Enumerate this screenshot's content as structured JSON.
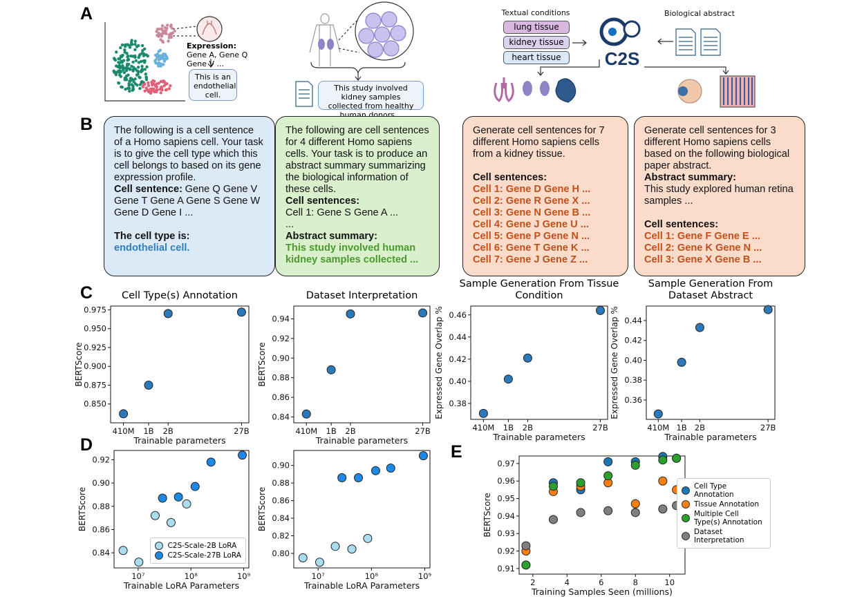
{
  "panel_labels": [
    "A",
    "B",
    "C",
    "D",
    "E"
  ],
  "panel_a": {
    "expression_label": "Expression:",
    "expression_text": "Gene A, Gene Q Gene V ...",
    "cell_answer": "This is an endothelial cell.",
    "study_text": "This study involved kidney samples collected from healthy human donors...",
    "conditions_title": "Textual conditions",
    "conditions": [
      "lung tissue",
      "kidney tissue",
      "heart tissue"
    ],
    "abstract_title": "Biological abstract",
    "logo": "C2S"
  },
  "panel_b": {
    "boxes": [
      {
        "paragraphs": [
          [
            {
              "text": "The following is a cell sentence of a Homo sapiens cell. Your task is to give the cell type which this cell belongs to based on its gene expression profile."
            }
          ],
          [
            {
              "text": "Cell sentence:",
              "bold": true
            },
            {
              "text": "Gene Q Gene V Gene T Gene A Gene S Gene W Gene D Gene I ..."
            }
          ],
          [
            {
              "text": "The cell type is:",
              "bold": true
            }
          ],
          [
            {
              "text": "endothelial cell.",
              "bold": true,
              "color": "#2f7fc1"
            }
          ]
        ]
      },
      {
        "paragraphs": [
          [
            {
              "text": "The following are cell sentences for 4 different Homo sapiens cells. Your task is to produce an abstract summary summarizing the biological information of these cells."
            }
          ],
          [
            {
              "text": "Cell sentences:",
              "bold": true
            }
          ],
          [
            {
              "text": "Cell 1: Gene S Gene A ..."
            }
          ],
          [
            {
              "text": "..."
            }
          ],
          [
            {
              "text": "Abstract summary:",
              "bold": true
            }
          ],
          [
            {
              "text": "This study involved human kidney samples collected ...",
              "bold": true,
              "color": "#4a9a2e"
            }
          ]
        ]
      },
      {
        "paragraphs": [
          [
            {
              "text": "Generate cell sentences for 7 different Homo sapiens cells from a kidney tissue."
            }
          ],
          [
            {
              "text": "Cell sentences:",
              "bold": true
            }
          ],
          [
            {
              "text": "Cell 1: Gene D Gene H ...",
              "bold": true,
              "color": "#c0501c"
            }
          ],
          [
            {
              "text": "Cell 2: Gene R Gene X ...",
              "bold": true,
              "color": "#c0501c"
            }
          ],
          [
            {
              "text": "Cell 3: Gene N Gene B ...",
              "bold": true,
              "color": "#c0501c"
            }
          ],
          [
            {
              "text": "Cell 4: Gene J Gene U ...",
              "bold": true,
              "color": "#c0501c"
            }
          ],
          [
            {
              "text": "Cell 5: Gene P Gene N ...",
              "bold": true,
              "color": "#c0501c"
            }
          ],
          [
            {
              "text": "Cell 6: Gene T Gene K ...",
              "bold": true,
              "color": "#c0501c"
            }
          ],
          [
            {
              "text": "Cell 7: Gene J Gene Z ...",
              "bold": true,
              "color": "#c0501c"
            }
          ]
        ]
      },
      {
        "paragraphs": [
          [
            {
              "text": "Generate cell sentences for 3 different Homo sapiens cells based on the following biological paper abstract."
            }
          ],
          [
            {
              "text": "Abstract summary:",
              "bold": true
            }
          ],
          [
            {
              "text": "This study explored human retina samples ..."
            }
          ],
          [
            {
              "text": "Cell sentences:",
              "bold": true
            }
          ],
          [
            {
              "text": "Cell 1: Gene F Gene E ...",
              "bold": true,
              "color": "#c0501c"
            }
          ],
          [
            {
              "text": "Cell 2: Gene K Gene N ...",
              "bold": true,
              "color": "#c0501c"
            }
          ],
          [
            {
              "text": "Cell 3: Gene X Gene B ...",
              "bold": true,
              "color": "#c0501c"
            }
          ]
        ]
      }
    ]
  },
  "chart_data": [
    {
      "type": "scatter",
      "title": "Cell Type(s) Annotation",
      "x_label": "Trainable parameters",
      "y_label": "BERTScore",
      "x": [
        410000000,
        1000000000,
        2000000000,
        27000000000
      ],
      "values": [
        0.837,
        0.875,
        0.97,
        0.972
      ],
      "color": "#2b79b8",
      "xlog": true,
      "xlim": [
        260000000,
        35000000000
      ],
      "xticks": [
        {
          "value": 410000000,
          "label": "410M"
        },
        {
          "value": 1000000000,
          "label": "1B"
        },
        {
          "value": 2000000000,
          "label": "2B"
        },
        {
          "value": 27000000000,
          "label": "27B"
        }
      ],
      "ylim": [
        0.825,
        0.98
      ],
      "yticks": [
        {
          "value": 0.85,
          "label": "0.850"
        },
        0.875,
        {
          "value": 0.9,
          "label": "0.900"
        },
        0.925,
        {
          "value": 0.95,
          "label": "0.950"
        },
        0.975
      ]
    },
    {
      "type": "scatter",
      "title": "Dataset Interpretation",
      "x_label": "Trainable parameters",
      "y_label": "BERTScore",
      "x": [
        410000000,
        1000000000,
        2000000000,
        27000000000
      ],
      "values": [
        0.843,
        0.888,
        0.945,
        0.946
      ],
      "color": "#2b79b8",
      "xlog": true,
      "xlim": [
        260000000,
        35000000000
      ],
      "xticks": [
        {
          "value": 410000000,
          "label": "410M"
        },
        {
          "value": 1000000000,
          "label": "1B"
        },
        {
          "value": 2000000000,
          "label": "2B"
        },
        {
          "value": 27000000000,
          "label": "27B"
        }
      ],
      "ylim": [
        0.834,
        0.953
      ],
      "yticks": [
        0.84,
        0.86,
        0.88,
        {
          "value": 0.9,
          "label": "0.90"
        },
        0.92,
        0.94
      ]
    },
    {
      "type": "scatter",
      "title": "Sample Generation From Tissue Condition",
      "x_label": "Trainable parameters",
      "y_label": "Expressed Gene Overlap %",
      "x": [
        410000000,
        1000000000,
        2000000000,
        27000000000
      ],
      "values": [
        0.371,
        0.402,
        0.421,
        0.464
      ],
      "color": "#2b79b8",
      "xlog": true,
      "xlim": [
        260000000,
        35000000000
      ],
      "xticks": [
        {
          "value": 410000000,
          "label": "410M"
        },
        {
          "value": 1000000000,
          "label": "1B"
        },
        {
          "value": 2000000000,
          "label": "2B"
        },
        {
          "value": 27000000000,
          "label": "27B"
        }
      ],
      "ylim": [
        0.3656,
        0.468
      ],
      "yticks": [
        0.38,
        {
          "value": 0.4,
          "label": "0.40"
        },
        0.42,
        0.44,
        0.46
      ]
    },
    {
      "type": "scatter",
      "title": "Sample Generation From Dataset Abstract",
      "x_label": "Trainable parameters",
      "y_label": "Expressed Gene Overlap %",
      "x": [
        410000000,
        1000000000,
        2000000000,
        27000000000
      ],
      "values": [
        0.346,
        0.398,
        0.433,
        0.451
      ],
      "color": "#2b79b8",
      "xlog": true,
      "xlim": [
        260000000,
        35000000000
      ],
      "xticks": [
        {
          "value": 410000000,
          "label": "410M"
        },
        {
          "value": 1000000000,
          "label": "1B"
        },
        {
          "value": 2000000000,
          "label": "2B"
        },
        {
          "value": 27000000000,
          "label": "27B"
        }
      ],
      "ylim": [
        0.3405,
        0.4546
      ],
      "yticks": [
        0.36,
        0.38,
        {
          "value": 0.4,
          "label": "0.40"
        },
        0.42,
        0.44
      ]
    },
    {
      "type": "scatter",
      "x_label": "Trainable LoRA Parameters",
      "y_label": "BERTScore",
      "xlog": true,
      "xlim": [
        3500000,
        1250000000
      ],
      "xticks": [
        {
          "value": 10000000,
          "label": "10⁷"
        },
        {
          "value": 100000000,
          "label": "10⁸"
        },
        {
          "value": 1000000000,
          "label": "10⁹"
        }
      ],
      "ylim": [
        0.827,
        0.928
      ],
      "yticks": [
        0.84,
        0.86,
        0.88,
        {
          "value": 0.9,
          "label": "0.90"
        },
        0.92
      ],
      "legend": "lower right",
      "series": [
        {
          "name": "C2S-Scale-2B LoRA",
          "color": "#a8dcee",
          "x": [
            5200000,
            10300000,
            21000000,
            42000000,
            83000000
          ],
          "values": [
            0.842,
            0.832,
            0.872,
            0.866,
            0.882
          ]
        },
        {
          "name": "C2S-Scale-27B LoRA",
          "color": "#1e88e5",
          "x": [
            29000000,
            58000000,
            120000000,
            240000000,
            940000000
          ],
          "values": [
            0.887,
            0.888,
            0.897,
            0.918,
            0.924
          ]
        }
      ]
    },
    {
      "type": "scatter",
      "x_label": "Trainable LoRA Parameters",
      "y_label": "BERTScore",
      "xlog": true,
      "xlim": [
        3500000,
        1250000000
      ],
      "xticks": [
        {
          "value": 10000000,
          "label": "10⁷"
        },
        {
          "value": 100000000,
          "label": "10⁸"
        },
        {
          "value": 1000000000,
          "label": "10⁹"
        }
      ],
      "ylim": [
        0.7835,
        0.917
      ],
      "yticks": [
        {
          "value": 0.8,
          "label": "0.80"
        },
        0.82,
        0.84,
        0.86,
        0.88,
        {
          "value": 0.9,
          "label": "0.90"
        }
      ],
      "series": [
        {
          "color": "#a8dcee",
          "x": [
            5200000,
            10700000,
            21000000,
            43000000,
            85000000
          ],
          "values": [
            0.795,
            0.79,
            0.808,
            0.805,
            0.817
          ]
        },
        {
          "color": "#1e88e5",
          "x": [
            28000000,
            57000000,
            120000000,
            230000000,
            940000000
          ],
          "values": [
            0.886,
            0.886,
            0.894,
            0.897,
            0.911
          ]
        }
      ]
    },
    {
      "type": "scatter",
      "x_label": "Training Samples Seen (millions)",
      "y_label": "BERTScore",
      "x": [
        1.6,
        3.2,
        4.8,
        6.4,
        8.0,
        9.6,
        10.4
      ],
      "xlim": [
        1.2,
        10.9
      ],
      "xticks": [
        2,
        4,
        6,
        8,
        10
      ],
      "ylim": [
        0.9068,
        0.9743
      ],
      "yticks": [
        0.91,
        0.92,
        0.93,
        0.94,
        0.95,
        0.96,
        0.97
      ],
      "legend": "outside right",
      "series": [
        {
          "name": "Cell Type Annotation",
          "color": "#1f77b4",
          "values": [
            0.912,
            0.959,
            0.955,
            0.971,
            0.971,
            0.974,
            0.973
          ]
        },
        {
          "name": "Tissue Annotation",
          "color": "#ff7f0e",
          "values": [
            0.92,
            0.954,
            0.957,
            0.959,
            0.947,
            0.96,
            0.955
          ]
        },
        {
          "name": "Multiple Cell Type(s) Annotation",
          "color": "#2ca02c",
          "values": [
            0.912,
            0.957,
            0.959,
            0.963,
            0.969,
            0.972,
            0.973
          ]
        },
        {
          "name": "Dataset Interpretation",
          "color": "#7f7f7f",
          "values": [
            0.923,
            0.938,
            0.942,
            0.943,
            0.942,
            0.944,
            0.946
          ]
        }
      ]
    }
  ]
}
